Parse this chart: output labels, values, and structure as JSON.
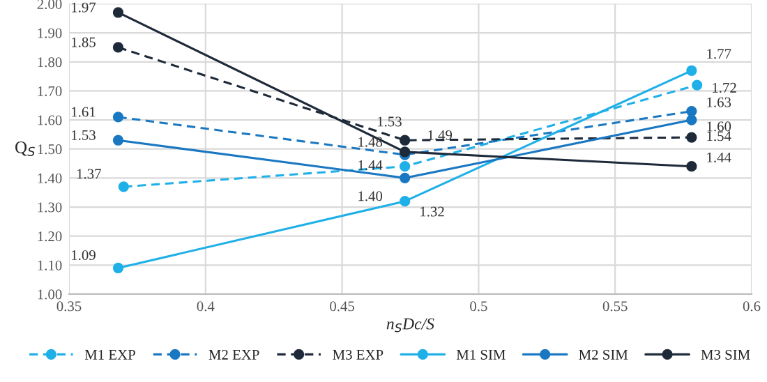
{
  "chart_data": {
    "type": "line",
    "xlabel": "n$_{S}$Dc/S",
    "ylabel": "Q$_{S}$",
    "xlim": [
      0.35,
      0.6
    ],
    "xticks": [
      0.35,
      0.4,
      0.45,
      0.5,
      0.55,
      0.6
    ],
    "ylim": [
      1.0,
      2.0
    ],
    "yticks": [
      {
        "value": 1.0,
        "label": "1.00"
      },
      {
        "value": 1.1,
        "label": "1.10"
      },
      {
        "value": 1.2,
        "label": "1.20"
      },
      {
        "value": 1.3,
        "label": "1.30"
      },
      {
        "value": 1.4,
        "label": "1.40"
      },
      {
        "value": 1.5,
        "label": "1.50"
      },
      {
        "value": 1.6,
        "label": "1.60"
      },
      {
        "value": 1.7,
        "label": "1.70"
      },
      {
        "value": 1.8,
        "label": "1.80"
      },
      {
        "value": 1.9,
        "label": "1.90"
      },
      {
        "value": 2.0,
        "label": "2.00"
      }
    ],
    "grid": true,
    "legend": "bottom",
    "marker": "circle",
    "series": [
      {
        "name": "M1 EXP",
        "color": "#1fb0e8",
        "line_style": "dashed",
        "x": [
          0.37,
          0.473,
          0.58
        ],
        "values": [
          1.37,
          1.44,
          1.72
        ],
        "value_labels": [
          "1.37",
          "1.44",
          "1.72"
        ]
      },
      {
        "name": "M2 EXP",
        "color": "#1a78c2",
        "line_style": "dashed",
        "x": [
          0.368,
          0.473,
          0.578
        ],
        "values": [
          1.61,
          1.48,
          1.63
        ],
        "value_labels": [
          "1.61",
          "1.48",
          "1.63"
        ]
      },
      {
        "name": "M3 EXP",
        "color": "#1e2a3a",
        "line_style": "dashed",
        "x": [
          0.368,
          0.473,
          0.578
        ],
        "values": [
          1.85,
          1.53,
          1.54
        ],
        "value_labels": [
          "1.85",
          "1.53",
          "1.54"
        ]
      },
      {
        "name": "M1 SIM",
        "color": "#1fb0e8",
        "line_style": "solid",
        "x": [
          0.368,
          0.473,
          0.578
        ],
        "values": [
          1.09,
          1.32,
          1.77
        ],
        "value_labels": [
          "1.09",
          "1.32",
          "1.77"
        ]
      },
      {
        "name": "M2 SIM",
        "color": "#1a78c2",
        "line_style": "solid",
        "x": [
          0.368,
          0.473,
          0.578
        ],
        "values": [
          1.53,
          1.4,
          1.6
        ],
        "value_labels": [
          "1.53",
          "1.40",
          "1.60"
        ]
      },
      {
        "name": "M3 SIM",
        "color": "#1e2a3a",
        "line_style": "solid",
        "x": [
          0.368,
          0.473,
          0.578
        ],
        "values": [
          1.97,
          1.49,
          1.44
        ],
        "value_labels": [
          "1.97",
          "1.49",
          "1.44"
        ]
      }
    ]
  }
}
